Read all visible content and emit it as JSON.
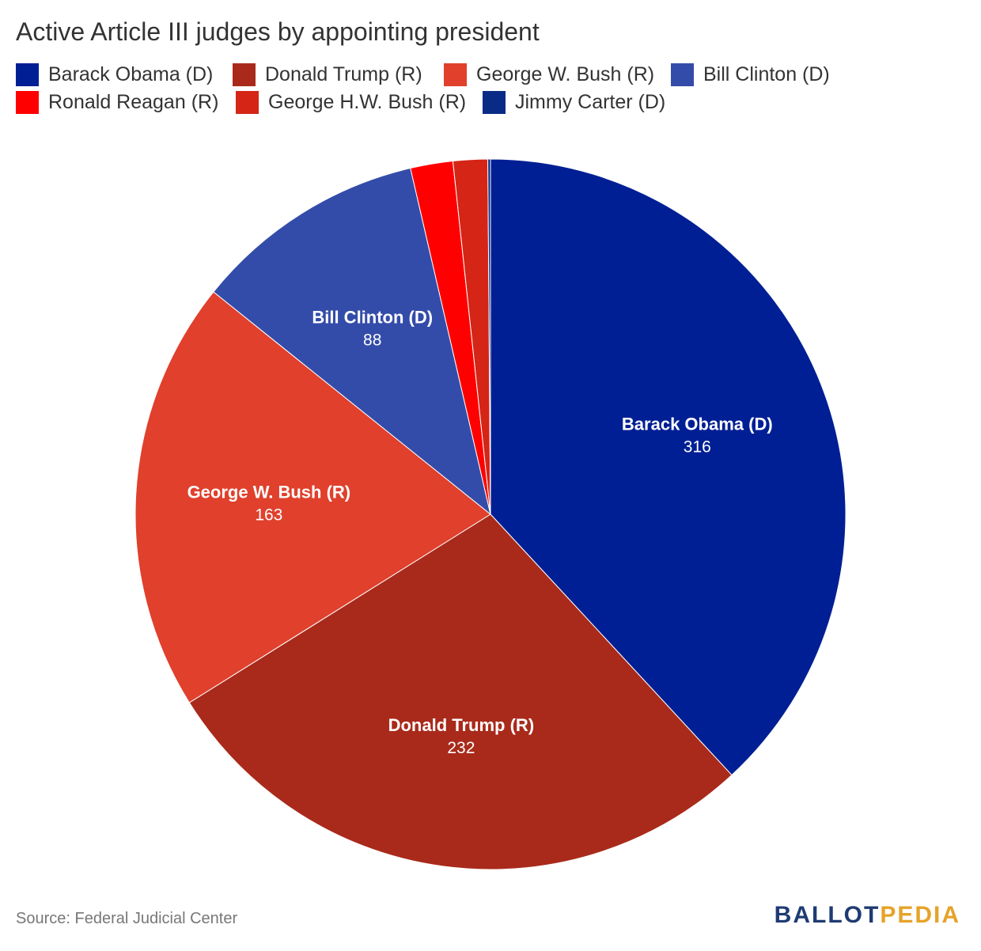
{
  "chart_data": {
    "type": "pie",
    "title": "Active Article III judges by appointing president",
    "legend_position": "top-left",
    "slices": [
      {
        "name": "Barack Obama (D)",
        "value": 316,
        "color": "#011f94",
        "labeled": true
      },
      {
        "name": "Donald Trump (R)",
        "value": 232,
        "color": "#a92a1b",
        "labeled": true
      },
      {
        "name": "George W. Bush (R)",
        "value": 163,
        "color": "#e0402c",
        "labeled": true
      },
      {
        "name": "Bill Clinton (D)",
        "value": 88,
        "color": "#344ca9",
        "labeled": true
      },
      {
        "name": "Ronald Reagan (R)",
        "value": 16,
        "color": "#fe0000",
        "labeled": false
      },
      {
        "name": "George H.W. Bush (R)",
        "value": 13,
        "color": "#d42516",
        "labeled": false
      },
      {
        "name": "Jimmy Carter (D)",
        "value": 1,
        "color": "#0a2b85",
        "labeled": false
      }
    ]
  },
  "footer": {
    "source": "Source: Federal Judicial Center",
    "brand_part1": "BALLOT",
    "brand_part2": "PEDIA"
  }
}
